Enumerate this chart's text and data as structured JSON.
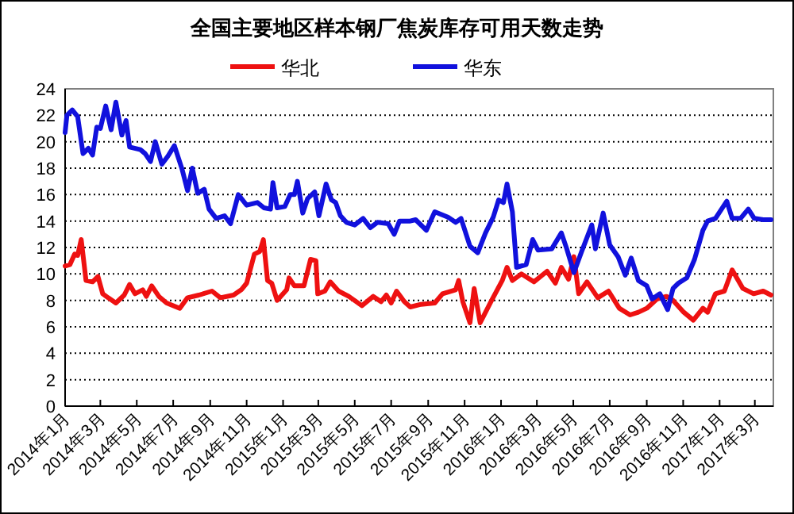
{
  "chart_data": {
    "type": "line",
    "title": "全国主要地区样本钢厂焦炭库存可用天数走势",
    "legend": "top",
    "grid": "y",
    "marker": "none",
    "line_style": "solid",
    "xlim": [
      "2014-01-01",
      "2017-04-01"
    ],
    "xticks": [
      {
        "value": "2014-01",
        "label": "2014年1月"
      },
      {
        "value": "2014-03",
        "label": "2014年3月"
      },
      {
        "value": "2014-05",
        "label": "2014年5月"
      },
      {
        "value": "2014-07",
        "label": "2014年7月"
      },
      {
        "value": "2014-09",
        "label": "2014年9月"
      },
      {
        "value": "2014-11",
        "label": "2014年11月"
      },
      {
        "value": "2015-01",
        "label": "2015年1月"
      },
      {
        "value": "2015-03",
        "label": "2015年3月"
      },
      {
        "value": "2015-05",
        "label": "2015年5月"
      },
      {
        "value": "2015-07",
        "label": "2015年7月"
      },
      {
        "value": "2015-09",
        "label": "2015年9月"
      },
      {
        "value": "2015-11",
        "label": "2015年11月"
      },
      {
        "value": "2016-01",
        "label": "2016年1月"
      },
      {
        "value": "2016-03",
        "label": "2016年3月"
      },
      {
        "value": "2016-05",
        "label": "2016年5月"
      },
      {
        "value": "2016-07",
        "label": "2016年7月"
      },
      {
        "value": "2016-09",
        "label": "2016年9月"
      },
      {
        "value": "2016-11",
        "label": "2016年11月"
      },
      {
        "value": "2017-01",
        "label": "2017年1月"
      },
      {
        "value": "2017-03",
        "label": "2017年3月"
      }
    ],
    "ylim": [
      0,
      24
    ],
    "yticks": [
      0,
      2,
      4,
      6,
      8,
      10,
      12,
      14,
      16,
      18,
      20,
      22,
      24
    ],
    "series": [
      {
        "name": "华北",
        "color": "#ee1111",
        "x": [
          "2014-01-01",
          "2014-01-09",
          "2014-01-17",
          "2014-01-22",
          "2014-01-28",
          "2014-02-05",
          "2014-02-16",
          "2014-02-25",
          "2014-03-05",
          "2014-03-14",
          "2014-03-27",
          "2014-04-10",
          "2014-04-19",
          "2014-04-28",
          "2014-05-11",
          "2014-05-17",
          "2014-05-26",
          "2014-06-07",
          "2014-06-20",
          "2014-07-12",
          "2014-07-25",
          "2014-08-13",
          "2014-09-04",
          "2014-09-18",
          "2014-10-10",
          "2014-10-23",
          "2014-11-01",
          "2014-11-14",
          "2014-11-23",
          "2014-11-29",
          "2014-12-06",
          "2014-12-13",
          "2014-12-22",
          "2015-01-07",
          "2015-01-11",
          "2015-01-20",
          "2015-02-05",
          "2015-02-16",
          "2015-02-25",
          "2015-02-28",
          "2015-03-12",
          "2015-03-21",
          "2015-04-04",
          "2015-04-21",
          "2015-05-13",
          "2015-06-01",
          "2015-06-14",
          "2015-06-23",
          "2015-07-01",
          "2015-07-10",
          "2015-07-23",
          "2015-08-02",
          "2015-08-20",
          "2015-09-12",
          "2015-09-25",
          "2015-10-17",
          "2015-10-22",
          "2015-10-29",
          "2015-11-10",
          "2015-11-17",
          "2015-11-27",
          "2015-12-15",
          "2016-01-03",
          "2016-01-11",
          "2016-01-20",
          "2016-02-04",
          "2016-02-25",
          "2016-03-18",
          "2016-04-01",
          "2016-04-11",
          "2016-04-23",
          "2016-05-02",
          "2016-05-10",
          "2016-05-24",
          "2016-06-11",
          "2016-06-29",
          "2016-07-17",
          "2016-08-04",
          "2016-08-18",
          "2016-09-01",
          "2016-09-18",
          "2016-10-04",
          "2016-10-15",
          "2016-11-02",
          "2016-11-18",
          "2016-12-04",
          "2016-12-12",
          "2016-12-25",
          "2017-01-09",
          "2017-01-22",
          "2017-02-09",
          "2017-02-27",
          "2017-03-15",
          "2017-03-28"
        ],
        "values": [
          10.6,
          10.7,
          11.5,
          11.4,
          12.6,
          9.5,
          9.4,
          9.8,
          8.5,
          8.2,
          7.8,
          8.4,
          9.2,
          8.5,
          8.8,
          8.3,
          9.1,
          8.3,
          7.8,
          7.4,
          8.2,
          8.4,
          8.7,
          8.2,
          8.4,
          8.8,
          9.3,
          11.5,
          11.7,
          12.6,
          9.5,
          9.3,
          8,
          8.8,
          9.7,
          9.1,
          9.1,
          11.1,
          11,
          8.5,
          8.7,
          9.4,
          8.7,
          8.3,
          7.6,
          8.3,
          7.9,
          8.4,
          7.8,
          8.7,
          7.9,
          7.5,
          7.7,
          7.8,
          8.5,
          8.8,
          9.5,
          7.9,
          6.3,
          8.9,
          6.3,
          7.9,
          9.5,
          10.5,
          9.5,
          10,
          9.4,
          10.2,
          9.3,
          10.5,
          9.6,
          11.3,
          8.5,
          9.4,
          8.2,
          8.7,
          7.4,
          6.9,
          7.1,
          7.4,
          8.1,
          8.3,
          8,
          7.1,
          6.5,
          7.4,
          7.1,
          8.5,
          8.7,
          10.3,
          8.9,
          8.5,
          8.7,
          8.4
        ]
      },
      {
        "name": "华东",
        "color": "#1111dd",
        "x": [
          "2014-01-01",
          "2014-01-04",
          "2014-01-13",
          "2014-01-22",
          "2014-01-31",
          "2014-02-09",
          "2014-02-16",
          "2014-02-23",
          "2014-03-01",
          "2014-03-10",
          "2014-03-19",
          "2014-03-27",
          "2014-04-06",
          "2014-04-13",
          "2014-04-19",
          "2014-05-07",
          "2014-05-15",
          "2014-05-24",
          "2014-06-01",
          "2014-06-12",
          "2014-06-22",
          "2014-07-03",
          "2014-07-16",
          "2014-07-25",
          "2014-08-02",
          "2014-08-11",
          "2014-08-22",
          "2014-08-30",
          "2014-09-11",
          "2014-09-25",
          "2014-10-05",
          "2014-10-18",
          "2014-11-01",
          "2014-11-19",
          "2014-11-30",
          "2014-12-11",
          "2014-12-15",
          "2014-12-22",
          "2015-01-04",
          "2015-01-13",
          "2015-01-20",
          "2015-01-25",
          "2015-02-03",
          "2015-02-11",
          "2015-02-23",
          "2015-03-02",
          "2015-03-14",
          "2015-03-23",
          "2015-03-30",
          "2015-04-07",
          "2015-04-17",
          "2015-05-01",
          "2015-05-15",
          "2015-05-27",
          "2015-06-08",
          "2015-06-26",
          "2015-07-06",
          "2015-07-15",
          "2015-08-02",
          "2015-08-11",
          "2015-08-29",
          "2015-09-12",
          "2015-10-04",
          "2015-10-17",
          "2015-10-26",
          "2015-11-10",
          "2015-11-23",
          "2015-12-06",
          "2015-12-19",
          "2015-12-28",
          "2016-01-05",
          "2016-01-11",
          "2016-01-20",
          "2016-01-27",
          "2016-02-12",
          "2016-02-23",
          "2016-03-03",
          "2016-03-26",
          "2016-04-11",
          "2016-04-20",
          "2016-05-02",
          "2016-05-15",
          "2016-06-01",
          "2016-06-07",
          "2016-06-20",
          "2016-07-01",
          "2016-07-15",
          "2016-07-27",
          "2016-08-06",
          "2016-08-18",
          "2016-09-01",
          "2016-09-10",
          "2016-09-23",
          "2016-10-06",
          "2016-10-15",
          "2016-10-24",
          "2016-11-07",
          "2016-11-20",
          "2016-12-04",
          "2016-12-12",
          "2016-12-25",
          "2017-01-13",
          "2017-01-22",
          "2017-02-05",
          "2017-02-18",
          "2017-02-28",
          "2017-03-15",
          "2017-03-28"
        ],
        "values": [
          20.7,
          22,
          22.4,
          21.9,
          19.1,
          19.5,
          19,
          21.1,
          21,
          22.7,
          20.9,
          23,
          20.5,
          21.6,
          19.6,
          19.4,
          19.1,
          18.5,
          20,
          18.3,
          18.9,
          19.7,
          17.9,
          16.3,
          18,
          16.1,
          16.4,
          14.9,
          14.2,
          14.4,
          13.8,
          16,
          15.2,
          15.4,
          15,
          14.9,
          16.9,
          15,
          15.1,
          16,
          16,
          17,
          14.6,
          15.7,
          16.2,
          14.4,
          16.8,
          15.6,
          15.4,
          14.4,
          13.9,
          13.7,
          14.2,
          13.5,
          13.9,
          13.8,
          13,
          14,
          14,
          14.1,
          13.3,
          14.7,
          14.3,
          13.9,
          14.2,
          12.1,
          11.6,
          13.1,
          14.3,
          15.6,
          15.4,
          16.8,
          14.7,
          10.5,
          10.7,
          12.6,
          11.8,
          11.9,
          13.1,
          11.9,
          10.1,
          11.7,
          13.7,
          11.9,
          14.6,
          12.2,
          11.3,
          9.9,
          11.2,
          9.5,
          9.1,
          8.1,
          8.5,
          7.3,
          8.9,
          9.3,
          9.7,
          11.1,
          13.3,
          14,
          14.2,
          15.5,
          14.2,
          14.2,
          14.9,
          14.2,
          14.1,
          14.1
        ]
      }
    ]
  }
}
